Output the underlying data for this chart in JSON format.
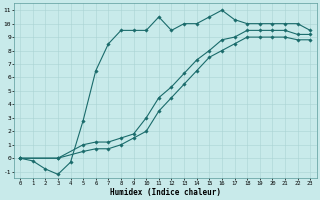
{
  "xlabel": "Humidex (Indice chaleur)",
  "bg_color": "#c8eaea",
  "line_color": "#1a6b6b",
  "grid_color": "#aad4d4",
  "xlim": [
    -0.5,
    23.5
  ],
  "ylim": [
    -1.5,
    11.5
  ],
  "xticks": [
    0,
    1,
    2,
    3,
    4,
    5,
    6,
    7,
    8,
    9,
    10,
    11,
    12,
    13,
    14,
    15,
    16,
    17,
    18,
    19,
    20,
    21,
    22,
    23
  ],
  "yticks": [
    -1,
    0,
    1,
    2,
    3,
    4,
    5,
    6,
    7,
    8,
    9,
    10,
    11
  ],
  "line1_x": [
    0,
    1,
    2,
    3,
    4,
    5,
    6,
    7,
    8,
    9,
    10,
    11,
    12,
    13,
    14,
    15,
    16,
    17,
    18,
    19,
    20,
    21,
    22,
    23
  ],
  "line1_y": [
    0,
    -0.2,
    -0.8,
    -1.2,
    -0.3,
    2.8,
    6.5,
    8.5,
    9.5,
    9.5,
    9.5,
    10.5,
    9.5,
    10.0,
    10.0,
    10.5,
    11,
    10.3,
    10,
    10,
    10,
    10,
    10,
    9.5
  ],
  "line2_x": [
    0,
    3,
    5,
    6,
    7,
    8,
    9,
    10,
    11,
    12,
    13,
    14,
    15,
    16,
    17,
    18,
    19,
    20,
    21,
    22,
    23
  ],
  "line2_y": [
    0,
    0,
    1,
    1.2,
    1.2,
    1.5,
    1.8,
    3,
    4.5,
    5.3,
    6.3,
    7.3,
    8,
    8.8,
    9,
    9.5,
    9.5,
    9.5,
    9.5,
    9.2,
    9.2
  ],
  "line3_x": [
    0,
    3,
    5,
    6,
    7,
    8,
    9,
    10,
    11,
    12,
    13,
    14,
    15,
    16,
    17,
    18,
    19,
    20,
    21,
    22,
    23
  ],
  "line3_y": [
    0,
    0,
    0.5,
    0.7,
    0.7,
    1,
    1.5,
    2,
    3.5,
    4.5,
    5.5,
    6.5,
    7.5,
    8,
    8.5,
    9,
    9,
    9,
    9,
    8.8,
    8.8
  ]
}
